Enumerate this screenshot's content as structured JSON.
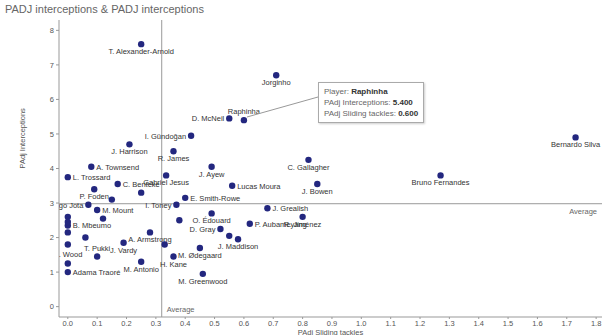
{
  "chart_data": {
    "type": "scatter",
    "title": "PADJ interceptions & PADJ interceptions",
    "x_label": "PAdj Sliding tackles",
    "y_label": "PAdj Interceptions",
    "x": [
      0.1,
      0.25,
      0.36,
      0.45,
      0.46,
      0.0,
      0.0,
      0.19,
      0.28,
      0.0,
      0.58,
      0.52,
      0.62,
      0.8,
      0.49,
      0.68,
      0.1,
      0.07,
      0.37,
      0.4,
      0.09,
      0.0,
      0.56,
      0.85,
      1.27,
      1.73,
      0.82,
      0.17,
      0.08,
      0.335,
      0.49,
      0.36,
      0.21,
      0.42,
      0.55,
      0.6,
      0.71,
      0.25,
      0.0,
      0.0,
      0.0,
      0.0,
      0.06,
      0.15,
      0.25,
      0.38,
      0.55,
      0.33,
      0.12
    ],
    "values": [
      1.45,
      1.3,
      1.45,
      1.7,
      0.95,
      1.25,
      1.0,
      1.85,
      2.15,
      2.35,
      1.95,
      2.25,
      2.4,
      2.6,
      2.7,
      2.85,
      2.8,
      2.95,
      2.95,
      3.15,
      3.4,
      3.75,
      3.5,
      3.55,
      3.8,
      4.9,
      4.25,
      3.55,
      4.05,
      3.8,
      4.05,
      4.5,
      4.7,
      4.95,
      5.45,
      5.4,
      6.7,
      7.6,
      2.6,
      2.45,
      2.15,
      1.8,
      2.0,
      3.1,
      3.3,
      2.5,
      2.05,
      1.8,
      2.55
    ],
    "labels": [
      "T. Pukki",
      "M. Antonio",
      "H. Kane",
      "M. Ødegaard",
      "M. Greenwood",
      "C. Wood",
      "Adama Traoré",
      "J. Vardy",
      "A. Armstrong",
      "B. Mbeumo",
      "J. Maddison",
      "D. Gray",
      "P. Aubameyang",
      "R. Jiménez",
      "O. Édouard",
      "J. Grealish",
      "M. Mount",
      "Diogo Jota",
      "I. Toney",
      "E. Smith-Rowe",
      "P. Foden",
      "L. Trossard",
      "Lucas Moura",
      "J. Bowen",
      "Bruno Fernandes",
      "Bernardo Silva",
      "C. Gallagher",
      "C. Benteke",
      "A. Townsend",
      "Gabriel Jesus",
      "J. Ayew",
      "R. James",
      "J. Harrison",
      "I. Gündoğan",
      "D. McNeil",
      "Raphinha",
      "Jorginho",
      "T. Alexander-Arnold",
      null,
      null,
      null,
      null,
      null,
      null,
      null,
      null,
      null,
      null,
      null
    ],
    "color": "#23277f",
    "xlim": [
      -0.03,
      1.82
    ],
    "ylim": [
      -0.3,
      8.3
    ],
    "xticks": [
      {
        "value": 0,
        "label": "0.0"
      },
      0.1,
      0.2,
      0.3,
      0.4,
      0.5,
      0.6,
      0.7,
      0.8,
      0.9,
      {
        "value": 1,
        "label": "1.0"
      },
      1.1,
      1.2,
      1.3,
      1.4,
      1.5,
      1.6,
      1.7,
      1.8
    ],
    "yticks": [
      0,
      1,
      2,
      3,
      4,
      5,
      6,
      7,
      8
    ],
    "grid": false,
    "reference_lines": [
      {
        "axis": "x",
        "value": 0.32,
        "label": "Average"
      },
      {
        "axis": "y",
        "value": 2.98,
        "label": "Average"
      }
    ],
    "annotation": {
      "lines": [
        {
          "label": "Player:",
          "value": "Raphinha"
        },
        {
          "label": "PAdj Interceptions:",
          "value": "5.400"
        },
        {
          "label": "PAdj Sliding tackles:",
          "value": "0.600"
        }
      ]
    }
  }
}
